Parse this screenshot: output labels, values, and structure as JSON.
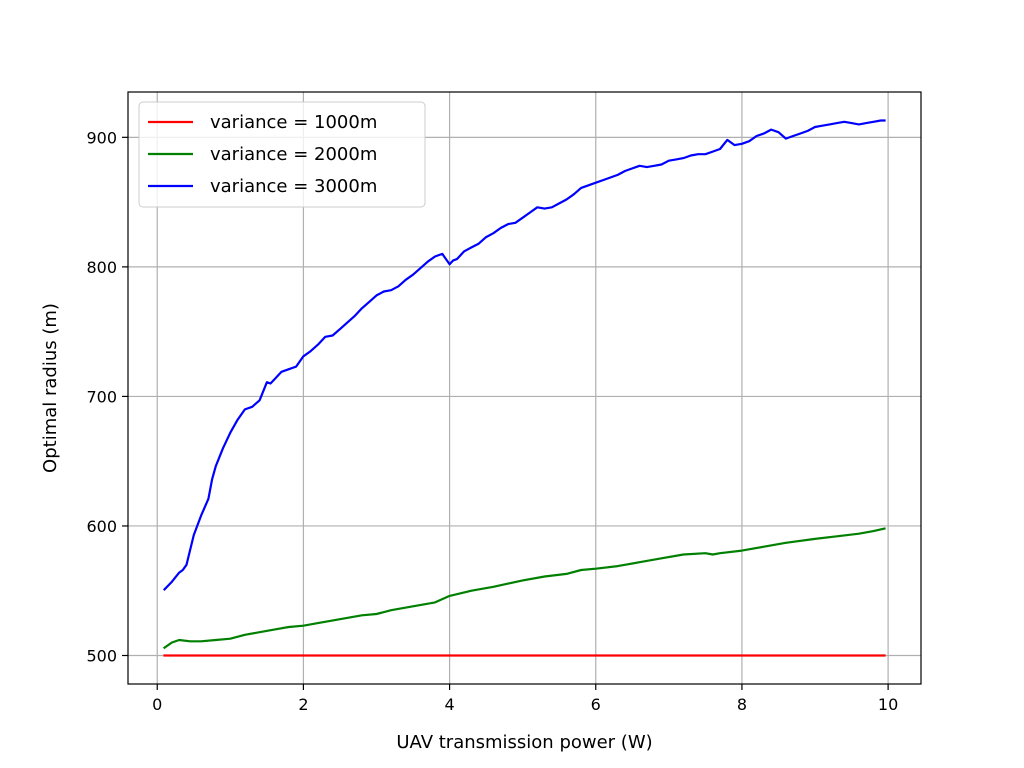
{
  "chart_data": {
    "type": "line",
    "title": "",
    "xlabel": "UAV transmission power (W)",
    "ylabel": "Optimal radius (m)",
    "xlim": [
      -0.4,
      10.45
    ],
    "ylim": [
      478,
      935
    ],
    "xticks": [
      0,
      2,
      4,
      6,
      8,
      10
    ],
    "yticks": [
      500,
      600,
      700,
      800,
      900
    ],
    "grid": true,
    "legend_position": "top-left",
    "series": [
      {
        "name": "variance = 1000m",
        "color": "#ff0000",
        "x": [
          0.1,
          1,
          2,
          3,
          4,
          5,
          6,
          7,
          8,
          9,
          9.95
        ],
        "y": [
          500,
          500,
          500,
          500,
          500,
          500,
          500,
          500,
          500,
          500,
          500
        ]
      },
      {
        "name": "variance = 2000m",
        "color": "#008000",
        "x": [
          0.1,
          0.2,
          0.3,
          0.45,
          0.6,
          0.8,
          1.0,
          1.2,
          1.4,
          1.6,
          1.8,
          2.0,
          2.2,
          2.5,
          2.8,
          3.0,
          3.2,
          3.5,
          3.8,
          4.0,
          4.3,
          4.6,
          5.0,
          5.3,
          5.6,
          5.8,
          6.0,
          6.3,
          6.6,
          6.9,
          7.2,
          7.5,
          7.6,
          7.7,
          8.0,
          8.3,
          8.6,
          9.0,
          9.3,
          9.6,
          9.8,
          9.95
        ],
        "y": [
          506,
          510,
          512,
          511,
          511,
          512,
          513,
          516,
          518,
          520,
          522,
          523,
          525,
          528,
          531,
          532,
          535,
          538,
          541,
          546,
          550,
          553,
          558,
          561,
          563,
          566,
          567,
          569,
          572,
          575,
          578,
          579,
          578,
          579,
          581,
          584,
          587,
          590,
          592,
          594,
          596,
          598
        ]
      },
      {
        "name": "variance = 3000m",
        "color": "#0000ff",
        "x": [
          0.1,
          0.2,
          0.3,
          0.35,
          0.4,
          0.5,
          0.6,
          0.7,
          0.75,
          0.8,
          0.9,
          1.0,
          1.1,
          1.2,
          1.3,
          1.4,
          1.5,
          1.55,
          1.6,
          1.7,
          1.8,
          1.9,
          2.0,
          2.1,
          2.2,
          2.3,
          2.4,
          2.5,
          2.6,
          2.7,
          2.8,
          2.9,
          3.0,
          3.1,
          3.2,
          3.3,
          3.4,
          3.5,
          3.6,
          3.7,
          3.8,
          3.9,
          4.0,
          4.05,
          4.1,
          4.2,
          4.3,
          4.4,
          4.5,
          4.6,
          4.7,
          4.8,
          4.9,
          5.0,
          5.1,
          5.2,
          5.3,
          5.4,
          5.5,
          5.6,
          5.7,
          5.8,
          5.9,
          6.0,
          6.1,
          6.2,
          6.3,
          6.4,
          6.5,
          6.6,
          6.7,
          6.8,
          6.9,
          7.0,
          7.1,
          7.2,
          7.3,
          7.4,
          7.5,
          7.6,
          7.7,
          7.8,
          7.9,
          8.0,
          8.1,
          8.2,
          8.3,
          8.4,
          8.5,
          8.6,
          8.7,
          8.8,
          8.9,
          9.0,
          9.1,
          9.2,
          9.3,
          9.4,
          9.5,
          9.6,
          9.7,
          9.8,
          9.9,
          9.95
        ],
        "y": [
          551,
          557,
          564,
          566,
          570,
          593,
          608,
          621,
          636,
          646,
          660,
          672,
          682,
          690,
          692,
          697,
          711,
          710,
          713,
          719,
          721,
          723,
          731,
          735,
          740,
          746,
          747,
          752,
          757,
          762,
          768,
          773,
          778,
          781,
          782,
          785,
          790,
          794,
          799,
          804,
          808,
          810,
          802,
          805,
          806,
          812,
          815,
          818,
          823,
          826,
          830,
          833,
          834,
          838,
          842,
          846,
          845,
          846,
          849,
          852,
          856,
          861,
          863,
          865,
          867,
          869,
          871,
          874,
          876,
          878,
          877,
          878,
          879,
          882,
          883,
          884,
          886,
          887,
          887,
          889,
          891,
          898,
          894,
          895,
          897,
          901,
          903,
          906,
          904,
          899,
          901,
          903,
          905,
          908,
          909,
          910,
          911,
          912,
          911,
          910,
          911,
          912,
          913,
          913
        ]
      }
    ]
  }
}
